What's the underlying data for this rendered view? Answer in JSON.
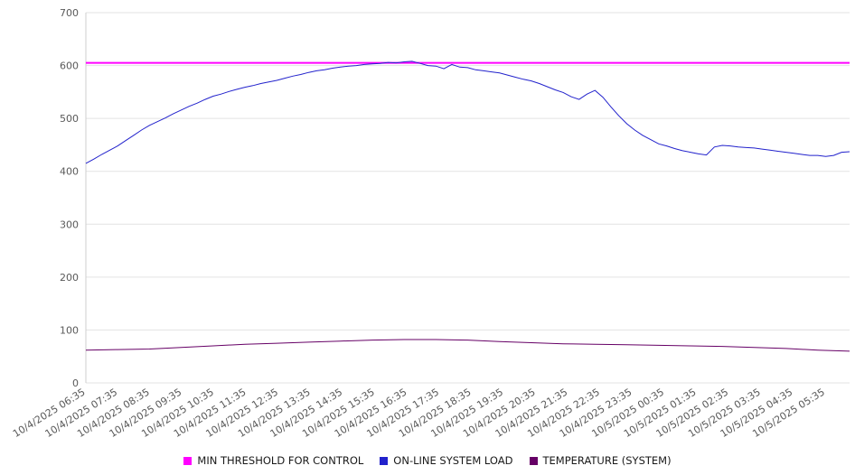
{
  "chart_data": {
    "type": "line",
    "title": "",
    "xlabel": "",
    "ylabel": "",
    "ylim": [
      0,
      700
    ],
    "ytick_step": 100,
    "grid": true,
    "legend_position": "bottom",
    "x_labels": [
      "10/4/2025 06:35",
      "10/4/2025 07:35",
      "10/4/2025 08:35",
      "10/4/2025 09:35",
      "10/4/2025 10:35",
      "10/4/2025 11:35",
      "10/4/2025 12:35",
      "10/4/2025 13:35",
      "10/4/2025 14:35",
      "10/4/2025 15:35",
      "10/4/2025 16:35",
      "10/4/2025 17:35",
      "10/4/2025 18:35",
      "10/4/2025 19:35",
      "10/4/2025 20:35",
      "10/4/2025 21:35",
      "10/4/2025 22:35",
      "10/4/2025 23:35",
      "10/5/2025 00:35",
      "10/5/2025 01:35",
      "10/5/2025 02:35",
      "10/5/2025 03:35",
      "10/5/2025 04:35",
      "10/5/2025 05:35"
    ],
    "series": [
      {
        "name": "MIN THRESHOLD FOR CONTROL",
        "color": "#ff00ff",
        "width": 2,
        "values": [
          605,
          605
        ]
      },
      {
        "name": "ON-LINE SYSTEM LOAD",
        "color": "#2222cc",
        "width": 1,
        "values": [
          415,
          423,
          432,
          440,
          448,
          458,
          468,
          478,
          487,
          494,
          501,
          509,
          516,
          523,
          529,
          536,
          542,
          546,
          551,
          555,
          559,
          562,
          566,
          569,
          572,
          576,
          580,
          583,
          587,
          590,
          592,
          595,
          597,
          599,
          600,
          602,
          603,
          604,
          606,
          605,
          607,
          608,
          604,
          600,
          599,
          594,
          602,
          597,
          596,
          592,
          590,
          588,
          586,
          582,
          578,
          574,
          571,
          566,
          560,
          554,
          549,
          541,
          536,
          546,
          553,
          540,
          522,
          505,
          490,
          478,
          468,
          460,
          452,
          448,
          443,
          439,
          436,
          433,
          431,
          446,
          449,
          448,
          446,
          445,
          444,
          442,
          440,
          438,
          436,
          434,
          432,
          430,
          430,
          428,
          430,
          436,
          437
        ]
      },
      {
        "name": "TEMPERATURE (SYSTEM)",
        "color": "#660066",
        "width": 1,
        "values": [
          62,
          63,
          64,
          67,
          70,
          73,
          75,
          77,
          79,
          81,
          82,
          82,
          81,
          78,
          76,
          74,
          73,
          72,
          71,
          70,
          69,
          67,
          65,
          62,
          60
        ]
      }
    ]
  }
}
